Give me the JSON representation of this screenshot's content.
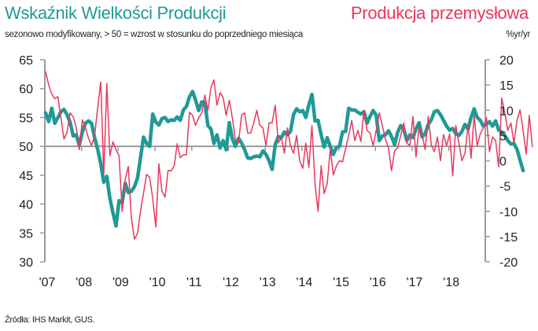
{
  "header": {
    "title_left": "Wskaźnik Wielkości Produkcji",
    "title_right": "Produkcja przemysłowa",
    "subtitle_left": "sezonowo modyfikowany, > 50 = wzrost w stosunku do poprzedniego miesiąca",
    "subtitle_right": "%yr/yr"
  },
  "footer": {
    "source": "Źródła: IHS Markit, GUS."
  },
  "colors": {
    "pmi": "#1f9a96",
    "industrial_production": "#e8385f",
    "axis": "#9a9a9a"
  },
  "chart_data": {
    "type": "line",
    "title": "Wskaźnik Wielkości Produkcji / Produkcja przemysłowa",
    "x_start": "2007-01",
    "x_frequency": "monthly",
    "x_ticks": [
      "'07",
      "'08",
      "'09",
      "'10",
      "'11",
      "'12",
      "'13",
      "'14",
      "'15",
      "'16",
      "'17",
      "'18"
    ],
    "left_axis": {
      "label": "sezonowo modyfikowany, > 50 = wzrost",
      "ylim": [
        30,
        65
      ],
      "ticks": [
        "30",
        "35",
        "40",
        "45",
        "50",
        "55",
        "60",
        "65"
      ]
    },
    "right_axis": {
      "label": "%yr/yr",
      "ylim": [
        -20,
        20
      ],
      "ticks": [
        "-20",
        "-15",
        "-10",
        "-5",
        "0",
        "5",
        "10",
        "15",
        "20"
      ]
    },
    "reference_line": {
      "axis": "left",
      "value": 50
    },
    "grid": false,
    "series": [
      {
        "name": "Wskaźnik Wielkości Produkcji",
        "axis": "left",
        "values": [
          55.8,
          54.3,
          56.6,
          54.0,
          55.0,
          56.0,
          56.4,
          55.5,
          54.2,
          51.8,
          52.0,
          50.2,
          52.5,
          54.0,
          54.4,
          54.0,
          51.5,
          49.5,
          47.0,
          43.8,
          44.8,
          41.0,
          38.5,
          36.2,
          40.6,
          40.2,
          43.6,
          42.0,
          42.2,
          43.0,
          44.5,
          48.0,
          51.6,
          50.5,
          50.0,
          55.6,
          54.2,
          53.7,
          54.8,
          55.0,
          54.3,
          54.6,
          54.5,
          55.1,
          54.5,
          56.3,
          56.9,
          58.6,
          59.5,
          58.0,
          56.2,
          57.7,
          57.6,
          53.6,
          53.0,
          50.5,
          52.0,
          49.7,
          51.0,
          49.4,
          54.1,
          51.3,
          50.0,
          51.4,
          50.6,
          49.4,
          48.0,
          47.9,
          48.2,
          48.3,
          48.2,
          49.2,
          48.6,
          47.5,
          46.0,
          50.3,
          51.7,
          51.5,
          52.5,
          52.0,
          52.6,
          55.5,
          56.5,
          56.0,
          56.2,
          55.0,
          57.2,
          59.0,
          54.4,
          54.5,
          52.0,
          49.9,
          51.5,
          50.0,
          48.6,
          49.8,
          50.0,
          52.5,
          52.6,
          56.6,
          56.3,
          56.3,
          55.9,
          55.6,
          56.0,
          54.0,
          55.2,
          56.2,
          55.4,
          51.0,
          51.8,
          52.0,
          52.7,
          51.7,
          50.3,
          52.4,
          53.6,
          53.0,
          51.0,
          52.0,
          51.5,
          53.0,
          54.1,
          51.6,
          52.2,
          53.8,
          54.6,
          56.0,
          56.2,
          55.5,
          54.5,
          53.5,
          52.8,
          53.1,
          52.2,
          51.9,
          52.6,
          53.8,
          53.0,
          55.0,
          56.5,
          55.0,
          54.5,
          53.5,
          53.8,
          54.3,
          53.5,
          54.4,
          52.8,
          52.5,
          51.9,
          51.0,
          50.4,
          50.5,
          49.5,
          47.6,
          45.8
        ]
      },
      {
        "name": "Produkcja przemysłowa",
        "axis": "right",
        "values": [
          17.6,
          15.0,
          13.2,
          12.3,
          12.7,
          8.5,
          4.3,
          5.6,
          9.5,
          8.7,
          6.6,
          2.2,
          8.1,
          6.5,
          4.5,
          3.0,
          5.0,
          10.5,
          15.6,
          -2.8,
          15.3,
          1.0,
          3.8,
          2.2,
          1.0,
          -10.0,
          -3.7,
          -1.1,
          -11.3,
          -15.5,
          -14.4,
          -10.0,
          -6.4,
          -2.7,
          -3.3,
          -7.5,
          -13.1,
          -0.6,
          -6.0,
          -7.2,
          -1.9,
          -2.0,
          -1.0,
          3.4,
          0.6,
          1.2,
          1.2,
          9.6,
          9.0,
          7.0,
          8.5,
          9.5,
          13.0,
          10.0,
          14.5,
          16.0,
          11.0,
          13.5,
          12.5,
          9.0,
          12.0,
          8.5,
          4.0,
          3.5,
          9.0,
          9.5,
          5.5,
          5.5,
          7.5,
          10.0,
          7.0,
          6.5,
          3.0,
          7.5,
          7.5,
          11.0,
          3.6,
          4.5,
          1.5,
          6.5,
          3.0,
          1.5,
          5.0,
          0.0,
          -1.5,
          3.5,
          -1.3,
          7.0,
          -4.5,
          -10.0,
          -1.0,
          -6.5,
          -4.5,
          2.3,
          -2.8,
          -1.0,
          0.0,
          -0.2,
          2.4,
          5.0,
          8.0,
          4.0,
          6.0,
          3.8,
          10.0,
          6.0,
          5.5,
          3.0,
          6.0,
          9.5,
          7.0,
          4.3,
          2.5,
          -2.0,
          2.0,
          2.5,
          5.0,
          7.5,
          3.5,
          3.0,
          8.8,
          0.8,
          6.7,
          5.0,
          2.2,
          8.8,
          3.1,
          1.8,
          4.7,
          0.0,
          5.2,
          3.0,
          5.3,
          -3.0,
          7.0,
          3.5,
          0.0,
          1.5,
          7.2,
          0.5,
          9.0,
          3.0,
          5.3,
          6.5,
          8.5,
          1.8,
          4.7,
          4.0,
          -1.2,
          12.4,
          9.5,
          6.0,
          7.5,
          3.5,
          8.0,
          10.1,
          6.0,
          1.3,
          9.0,
          2.8
        ]
      }
    ]
  }
}
